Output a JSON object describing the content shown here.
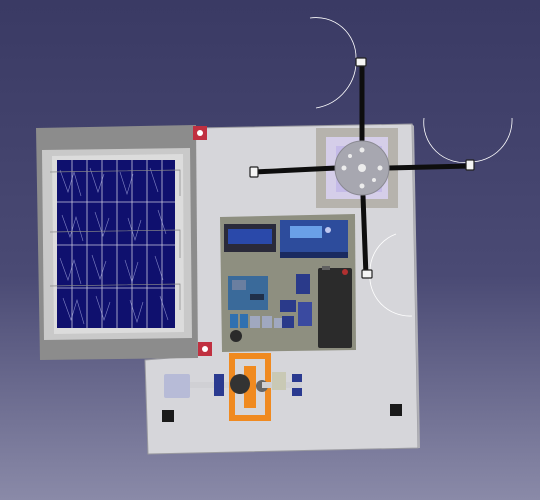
{
  "viewport": {
    "background_top": "#3a3a64",
    "background_bottom": "#8a8aa8"
  },
  "model": {
    "base_plate_color": "#d4d4d8",
    "solar_panel": {
      "cell_color": "#101070",
      "frame_color": "#8c8c8c",
      "bezel_color": "#c8c8c8"
    },
    "electronics_board_color": "#8d8f80",
    "lcd": {
      "label": "",
      "color": "#2a45a6"
    },
    "charge_controller": {
      "color": "#2a4aa8"
    },
    "battery": {
      "color": "#2a2a2a"
    },
    "wind_turbine": {
      "arms": 4,
      "hub_color": "#a8a8b0",
      "arm_color": "#101010"
    },
    "gearbox": {
      "color": "#f08a20"
    },
    "motor": {
      "color": "#b8bcd8"
    },
    "corner_mount_color": "#c03040"
  }
}
